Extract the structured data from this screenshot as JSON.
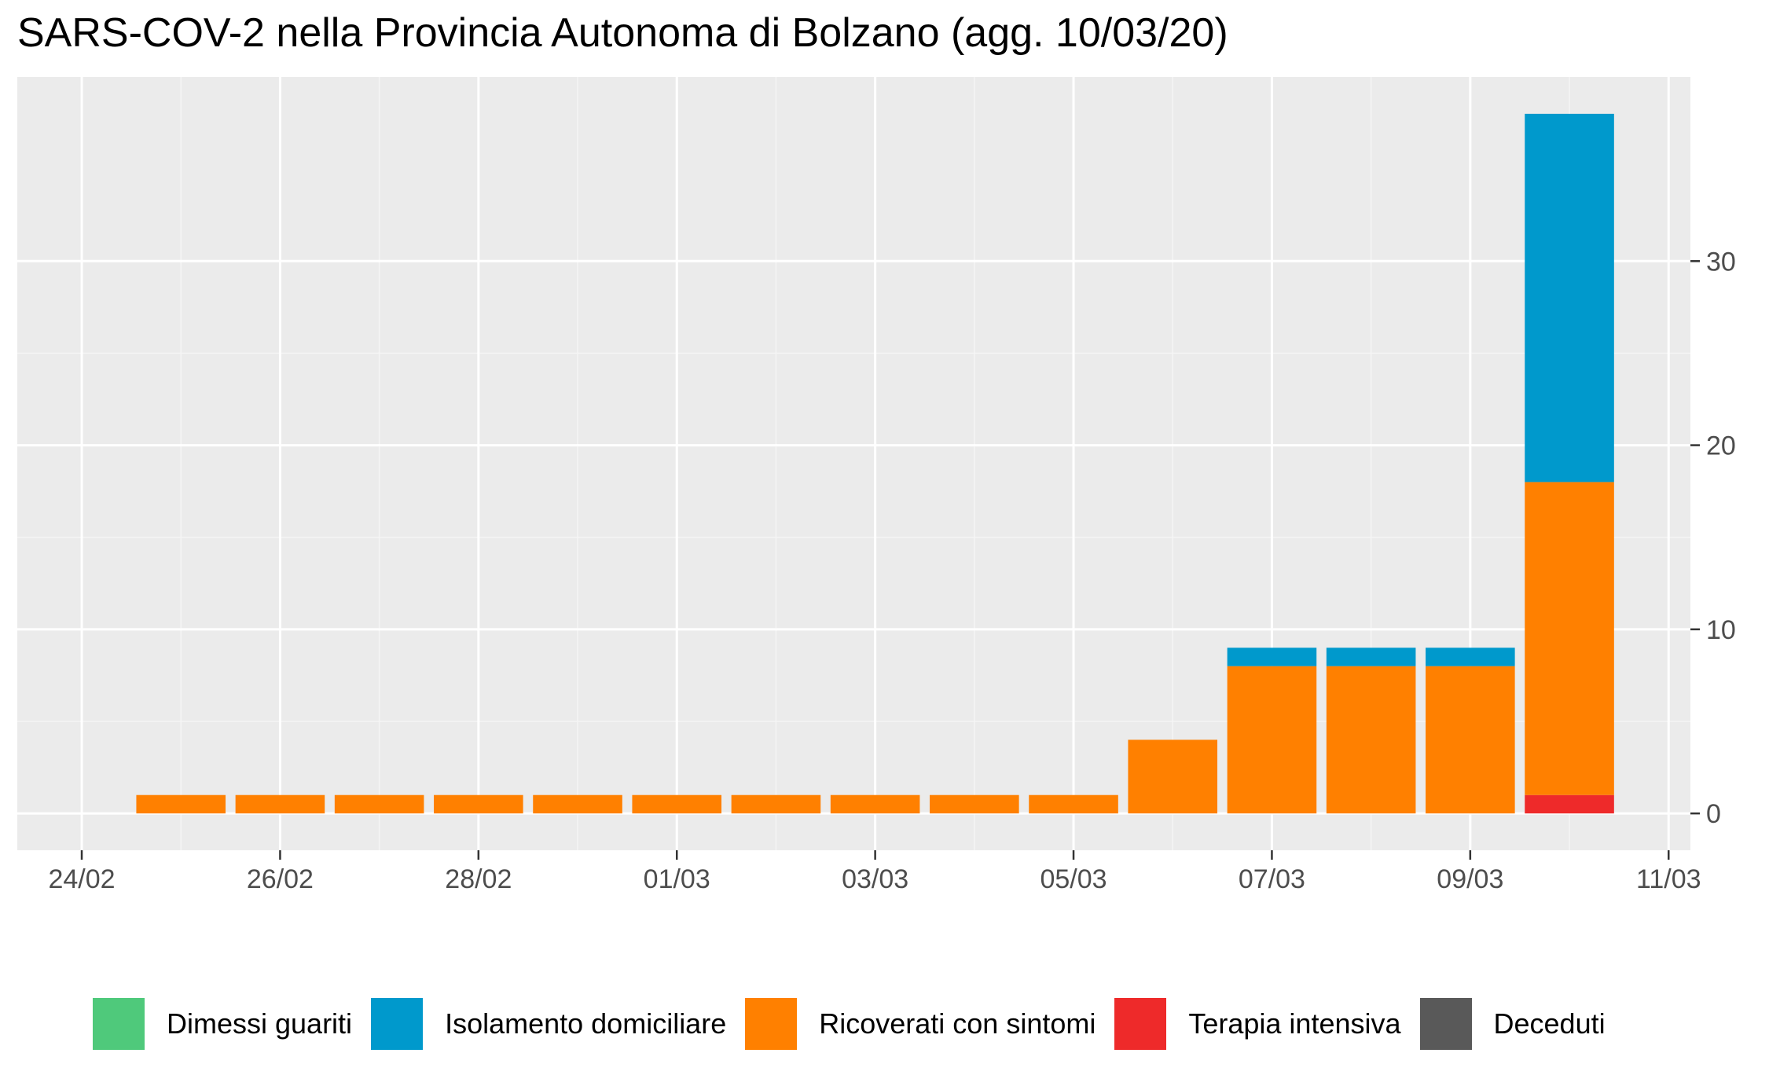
{
  "chart_data": {
    "type": "bar",
    "stacked": true,
    "title": "SARS-COV-2 nella Provincia Autonoma di Bolzano (agg. 10/03/20)",
    "xlabel": "",
    "ylabel": "",
    "categories": [
      "25/02",
      "26/02",
      "27/02",
      "28/02",
      "29/02",
      "01/03",
      "02/03",
      "03/03",
      "04/03",
      "05/03",
      "06/03",
      "07/03",
      "08/03",
      "09/03",
      "10/03"
    ],
    "x_tick_labels": [
      "24/02",
      "26/02",
      "28/02",
      "01/03",
      "03/03",
      "05/03",
      "07/03",
      "09/03",
      "11/03"
    ],
    "x_range": [
      "23/02",
      "11/03"
    ],
    "y_ticks": [
      0,
      10,
      20,
      30
    ],
    "ylim": [
      -2,
      40
    ],
    "y_axis_position": "right",
    "grid": true,
    "legend_position": "bottom",
    "series": [
      {
        "name": "Dimessi guariti",
        "color": "#4FC97B",
        "values": [
          0,
          0,
          0,
          0,
          0,
          0,
          0,
          0,
          0,
          0,
          0,
          0,
          0,
          0,
          0
        ]
      },
      {
        "name": "Isolamento domiciliare",
        "color": "#0099CC",
        "values": [
          0,
          0,
          0,
          0,
          0,
          0,
          0,
          0,
          0,
          0,
          0,
          1,
          1,
          1,
          20
        ]
      },
      {
        "name": "Ricoverati con sintomi",
        "color": "#FF8000",
        "values": [
          1,
          1,
          1,
          1,
          1,
          1,
          1,
          1,
          1,
          1,
          4,
          8,
          8,
          8,
          17
        ]
      },
      {
        "name": "Terapia intensiva",
        "color": "#EE2A2A",
        "values": [
          0,
          0,
          0,
          0,
          0,
          0,
          0,
          0,
          0,
          0,
          0,
          0,
          0,
          0,
          1
        ]
      },
      {
        "name": "Deceduti",
        "color": "#595959",
        "values": [
          0,
          0,
          0,
          0,
          0,
          0,
          0,
          0,
          0,
          0,
          0,
          0,
          0,
          0,
          0
        ]
      }
    ]
  }
}
